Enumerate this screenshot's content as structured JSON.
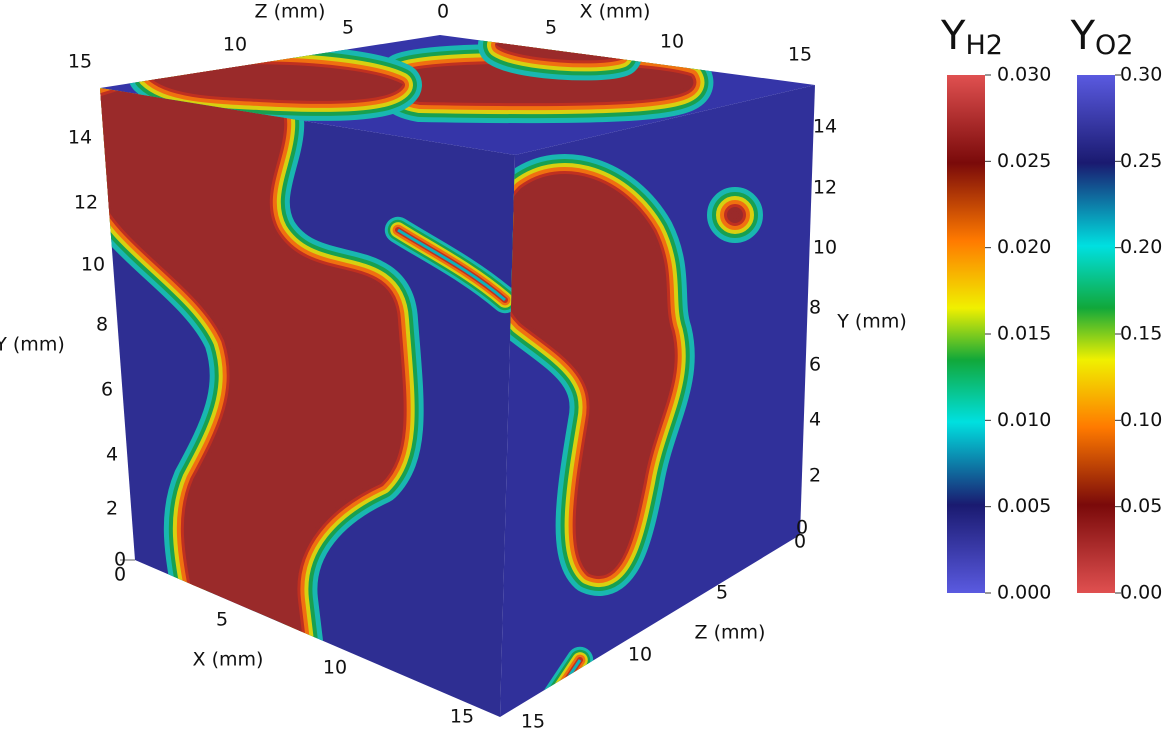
{
  "scene": {
    "axes": {
      "x_label_top": "X (mm)",
      "z_label_top": "Z (mm)",
      "y_label_left": "Y (mm)",
      "y_label_right": "Y (mm)",
      "x_label_bottom": "X (mm)",
      "z_label_bottom": "Z (mm)",
      "x_ticks_top": [
        0,
        5,
        10,
        15
      ],
      "z_ticks_top": [
        15,
        10,
        5
      ],
      "y_ticks_left": [
        0,
        2,
        4,
        6,
        8,
        10,
        12,
        14
      ],
      "y_ticks_right": [
        0,
        2,
        4,
        6,
        8,
        10,
        12,
        14
      ],
      "x_ticks_bottom": [
        0,
        5,
        10,
        15
      ],
      "z_ticks_bottom": [
        0,
        5,
        10,
        15
      ]
    },
    "colorbars": [
      {
        "symbol": "Y",
        "subscript": "H2",
        "labels": [
          "0.030",
          "0.025",
          "0.020",
          "0.015",
          "0.010",
          "0.005",
          "0.000"
        ]
      },
      {
        "symbol": "Y",
        "subscript": "O2",
        "labels": [
          "0.30",
          "0.25",
          "0.20",
          "0.15",
          "0.10",
          "0.05",
          "0.00"
        ]
      }
    ]
  }
}
